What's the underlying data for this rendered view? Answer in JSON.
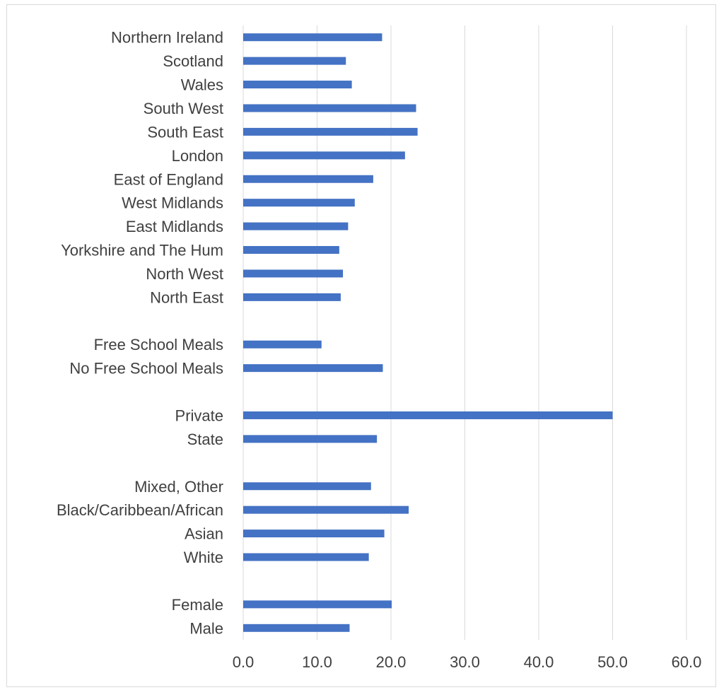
{
  "chart_data": {
    "type": "bar",
    "orientation": "horizontal",
    "title": "",
    "xlabel": "",
    "ylabel": "",
    "xlim": [
      0,
      60
    ],
    "x_ticks": [
      "0.0",
      "10.0",
      "20.0",
      "30.0",
      "40.0",
      "50.0",
      "60.0"
    ],
    "grid": "vertical",
    "legend": "none",
    "bar_color": "#4472c4",
    "gridline_color": "#d9d9d9",
    "categories": [
      {
        "label": "Northern Ireland",
        "value": 18.8
      },
      {
        "label": "Scotland",
        "value": 13.9
      },
      {
        "label": "Wales",
        "value": 14.7
      },
      {
        "label": "South West",
        "value": 23.4
      },
      {
        "label": "South East",
        "value": 23.6
      },
      {
        "label": "London",
        "value": 21.9
      },
      {
        "label": "East of England",
        "value": 17.6
      },
      {
        "label": "West Midlands",
        "value": 15.1
      },
      {
        "label": "East Midlands",
        "value": 14.2
      },
      {
        "label": "Yorkshire and The Hum",
        "value": 13.0
      },
      {
        "label": "North West",
        "value": 13.5
      },
      {
        "label": "North East",
        "value": 13.2
      },
      {
        "label": "",
        "value": null
      },
      {
        "label": "Free School Meals",
        "value": 10.6
      },
      {
        "label": "No Free School Meals",
        "value": 18.9
      },
      {
        "label": "",
        "value": null
      },
      {
        "label": "Private",
        "value": 50.0
      },
      {
        "label": "State",
        "value": 18.1
      },
      {
        "label": "",
        "value": null
      },
      {
        "label": "Mixed, Other",
        "value": 17.3
      },
      {
        "label": "Black/Caribbean/African",
        "value": 22.4
      },
      {
        "label": "Asian",
        "value": 19.1
      },
      {
        "label": "White",
        "value": 17.0
      },
      {
        "label": "",
        "value": null
      },
      {
        "label": "Female",
        "value": 20.1
      },
      {
        "label": "Male",
        "value": 14.4
      }
    ]
  }
}
